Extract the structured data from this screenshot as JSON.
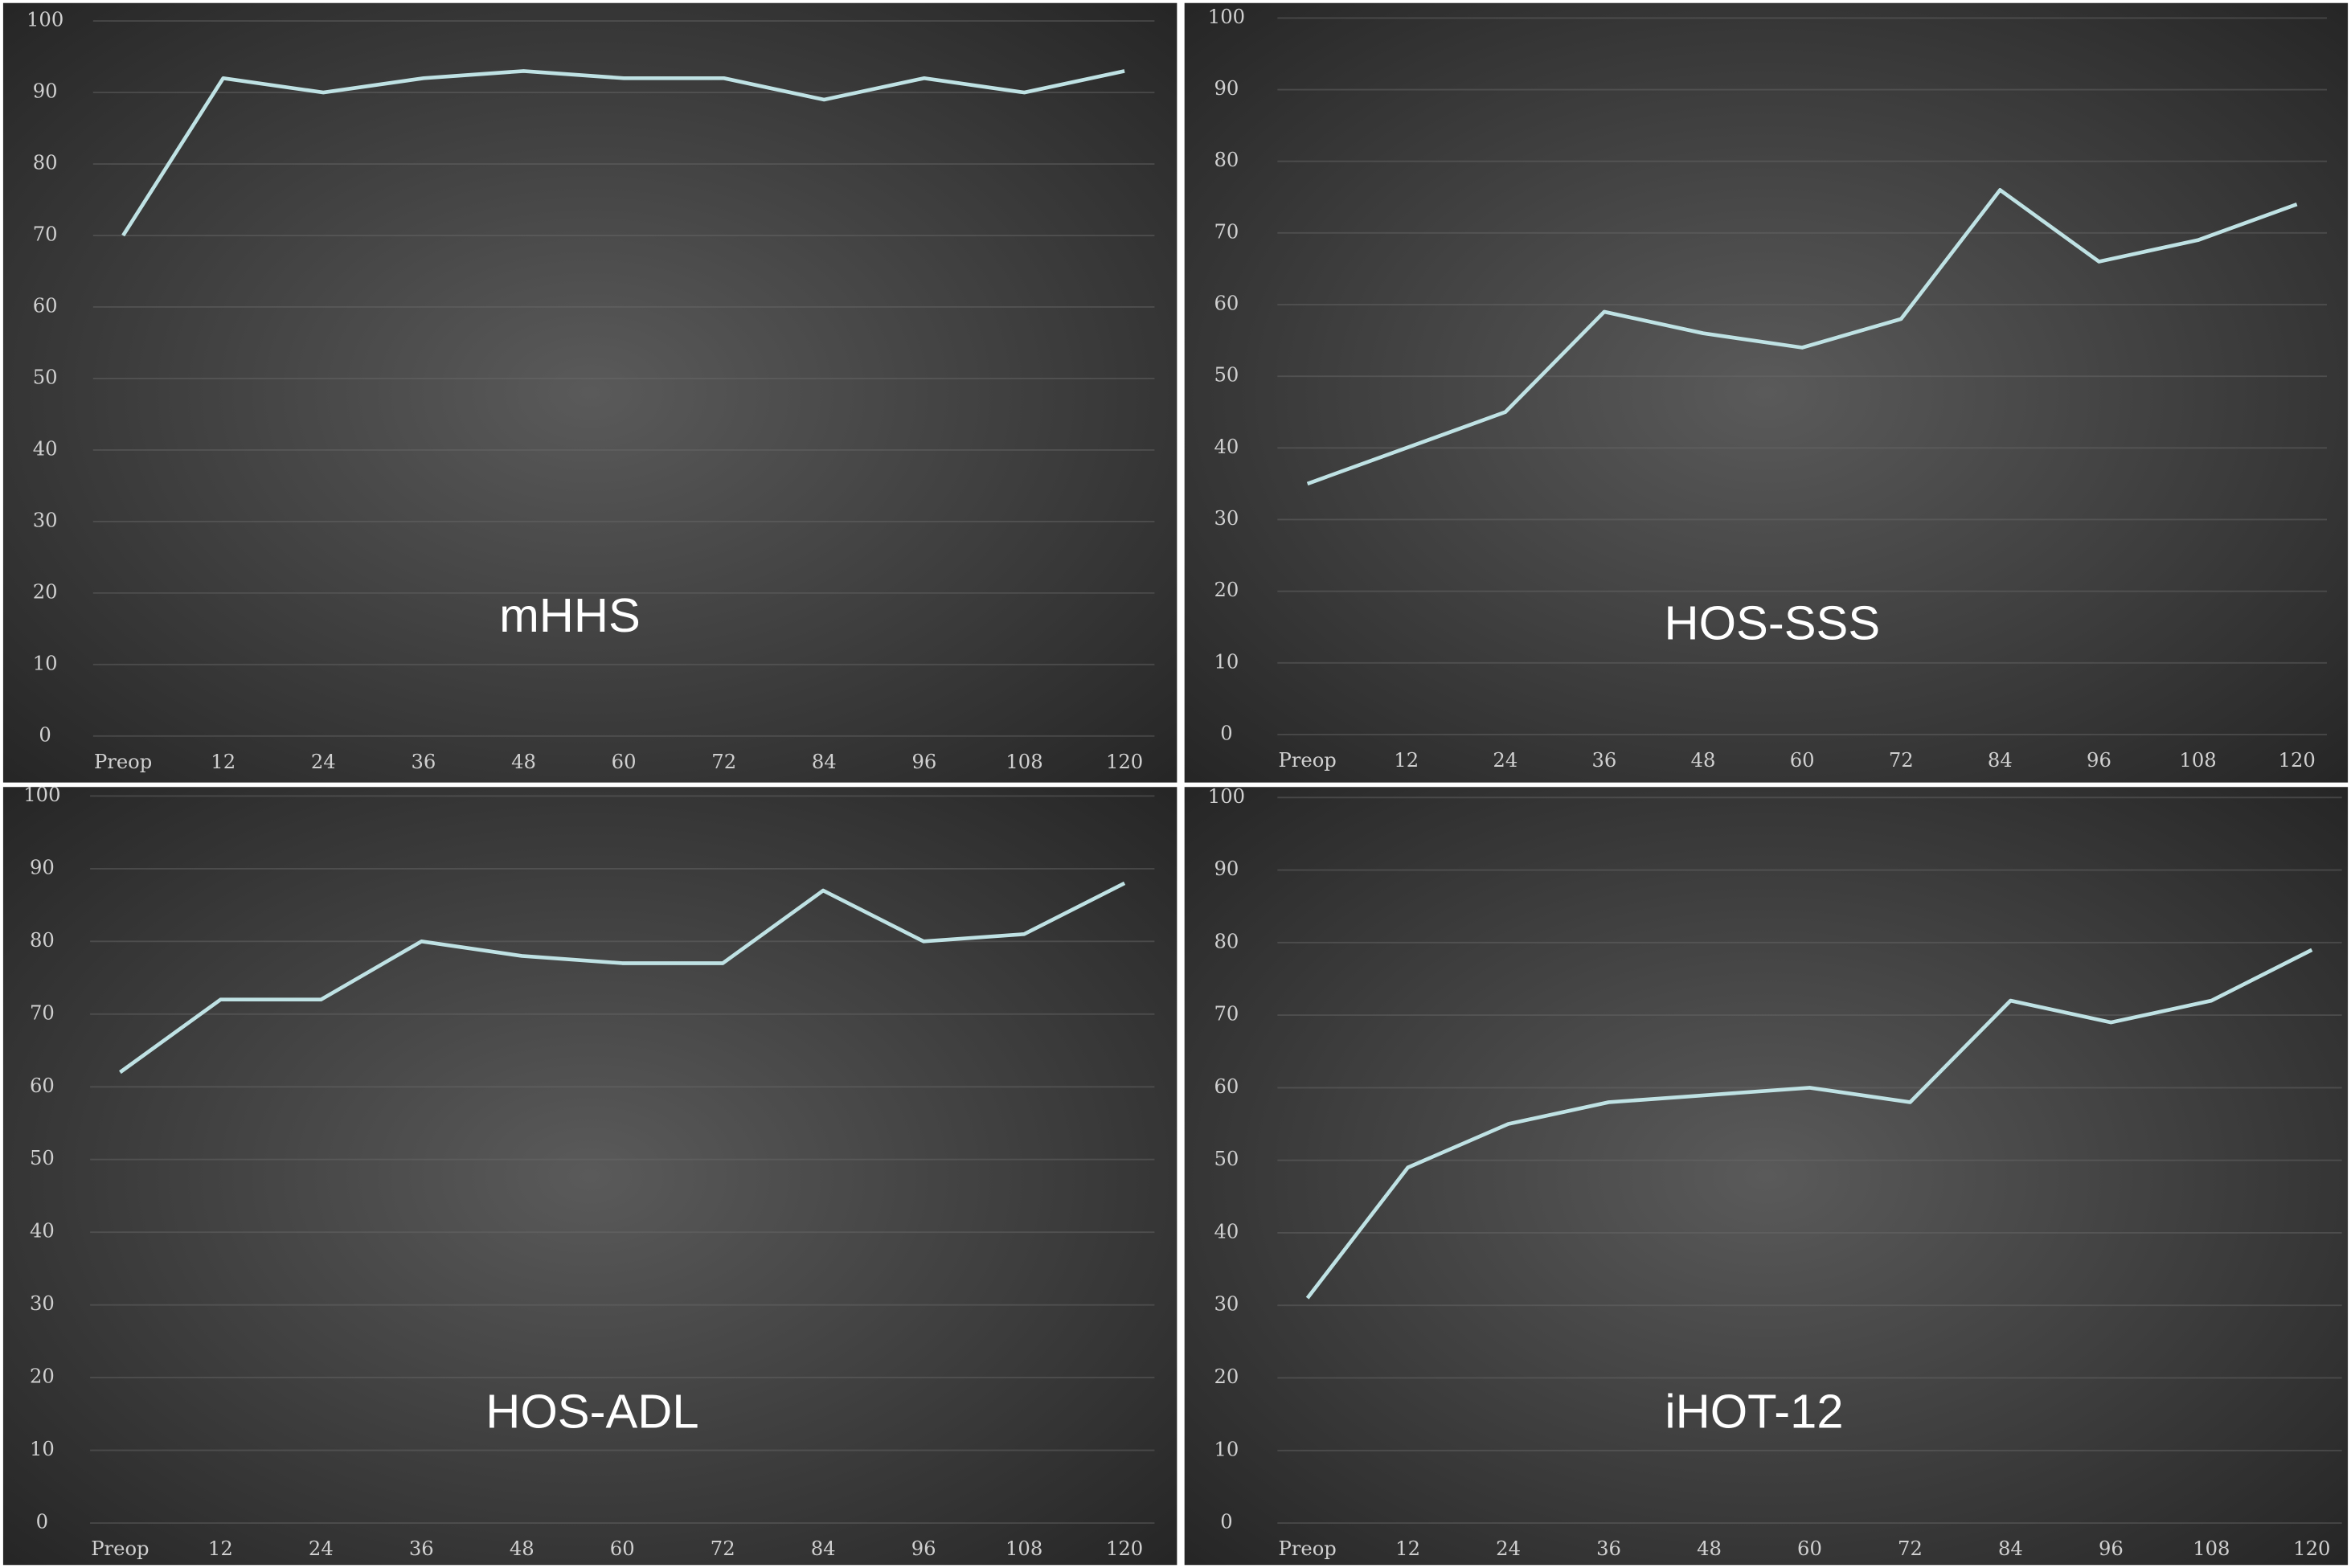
{
  "chart_data": [
    {
      "type": "line",
      "title": "mHHS",
      "categories": [
        "Preop",
        "12",
        "24",
        "36",
        "48",
        "60",
        "72",
        "84",
        "96",
        "108",
        "120"
      ],
      "series": [
        {
          "color": "#bfe2e4",
          "values": [
            70,
            92,
            90,
            92,
            93,
            92,
            92,
            89,
            92,
            90,
            93
          ]
        }
      ],
      "ylim": [
        0,
        100
      ],
      "yticks": [
        0,
        10,
        20,
        30,
        40,
        50,
        60,
        70,
        80,
        90,
        100
      ],
      "grid": true
    },
    {
      "type": "line",
      "title": "HOS-SSS",
      "categories": [
        "Preop",
        "12",
        "24",
        "36",
        "48",
        "60",
        "72",
        "84",
        "96",
        "108",
        "120"
      ],
      "series": [
        {
          "color": "#bfe2e4",
          "values": [
            35,
            40,
            45,
            59,
            56,
            54,
            58,
            76,
            66,
            69,
            74
          ]
        }
      ],
      "ylim": [
        0,
        100
      ],
      "yticks": [
        0,
        10,
        20,
        30,
        40,
        50,
        60,
        70,
        80,
        90,
        100
      ],
      "grid": true
    },
    {
      "type": "line",
      "title": "HOS-ADL",
      "categories": [
        "Preop",
        "12",
        "24",
        "36",
        "48",
        "60",
        "72",
        "84",
        "96",
        "108",
        "120"
      ],
      "series": [
        {
          "color": "#bfe2e4",
          "values": [
            62,
            72,
            72,
            80,
            78,
            77,
            77,
            87,
            80,
            81,
            88
          ]
        }
      ],
      "ylim": [
        0,
        100
      ],
      "yticks": [
        0,
        10,
        20,
        30,
        40,
        50,
        60,
        70,
        80,
        90,
        100
      ],
      "grid": true
    },
    {
      "type": "line",
      "title": "iHOT-12",
      "categories": [
        "Preop",
        "12",
        "24",
        "36",
        "48",
        "60",
        "72",
        "84",
        "96",
        "108",
        "120"
      ],
      "series": [
        {
          "color": "#bfe2e4",
          "values": [
            31,
            49,
            55,
            58,
            59,
            60,
            58,
            72,
            69,
            72,
            79
          ]
        }
      ],
      "ylim": [
        0,
        100
      ],
      "yticks": [
        0,
        10,
        20,
        30,
        40,
        50,
        60,
        70,
        80,
        90,
        100
      ],
      "grid": true
    }
  ]
}
